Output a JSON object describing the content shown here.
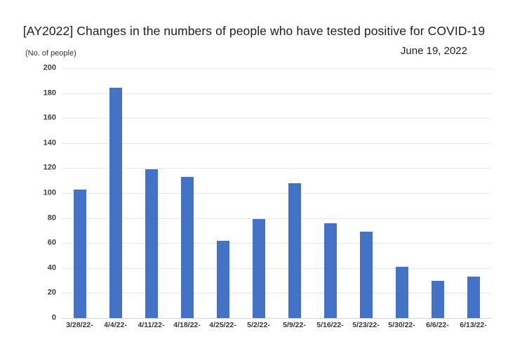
{
  "header": {
    "title": "[AY2022] Changes in the numbers of people who have tested positive for COVID-19",
    "units_label": "(No. of people)",
    "date_label": "June 19, 2022"
  },
  "chart_data": {
    "type": "bar",
    "title": "[AY2022] Changes in the numbers of people who have tested positive for COVID-19",
    "categories": [
      "3/28/22-",
      "4/4/22-",
      "4/11/22-",
      "4/18/22-",
      "4/25/22-",
      "5/2/22-",
      "5/9/22-",
      "5/16/22-",
      "5/23/22-",
      "5/30/22-",
      "6/6/22-",
      "6/13/22-"
    ],
    "values": [
      103,
      184,
      119,
      113,
      62,
      79,
      108,
      76,
      69,
      41,
      30,
      33
    ],
    "xlabel": "",
    "ylabel": "(No. of people)",
    "ylim": [
      0,
      200
    ],
    "ytick_step": 20,
    "grid": true,
    "legend": false,
    "annotation_date": "June 19, 2022",
    "bar_color": "#4472c4",
    "gridline_color": "#e6e6e6",
    "axis_line_color": "#d2d2d2",
    "tick_label_color": "#3f3f3f"
  }
}
